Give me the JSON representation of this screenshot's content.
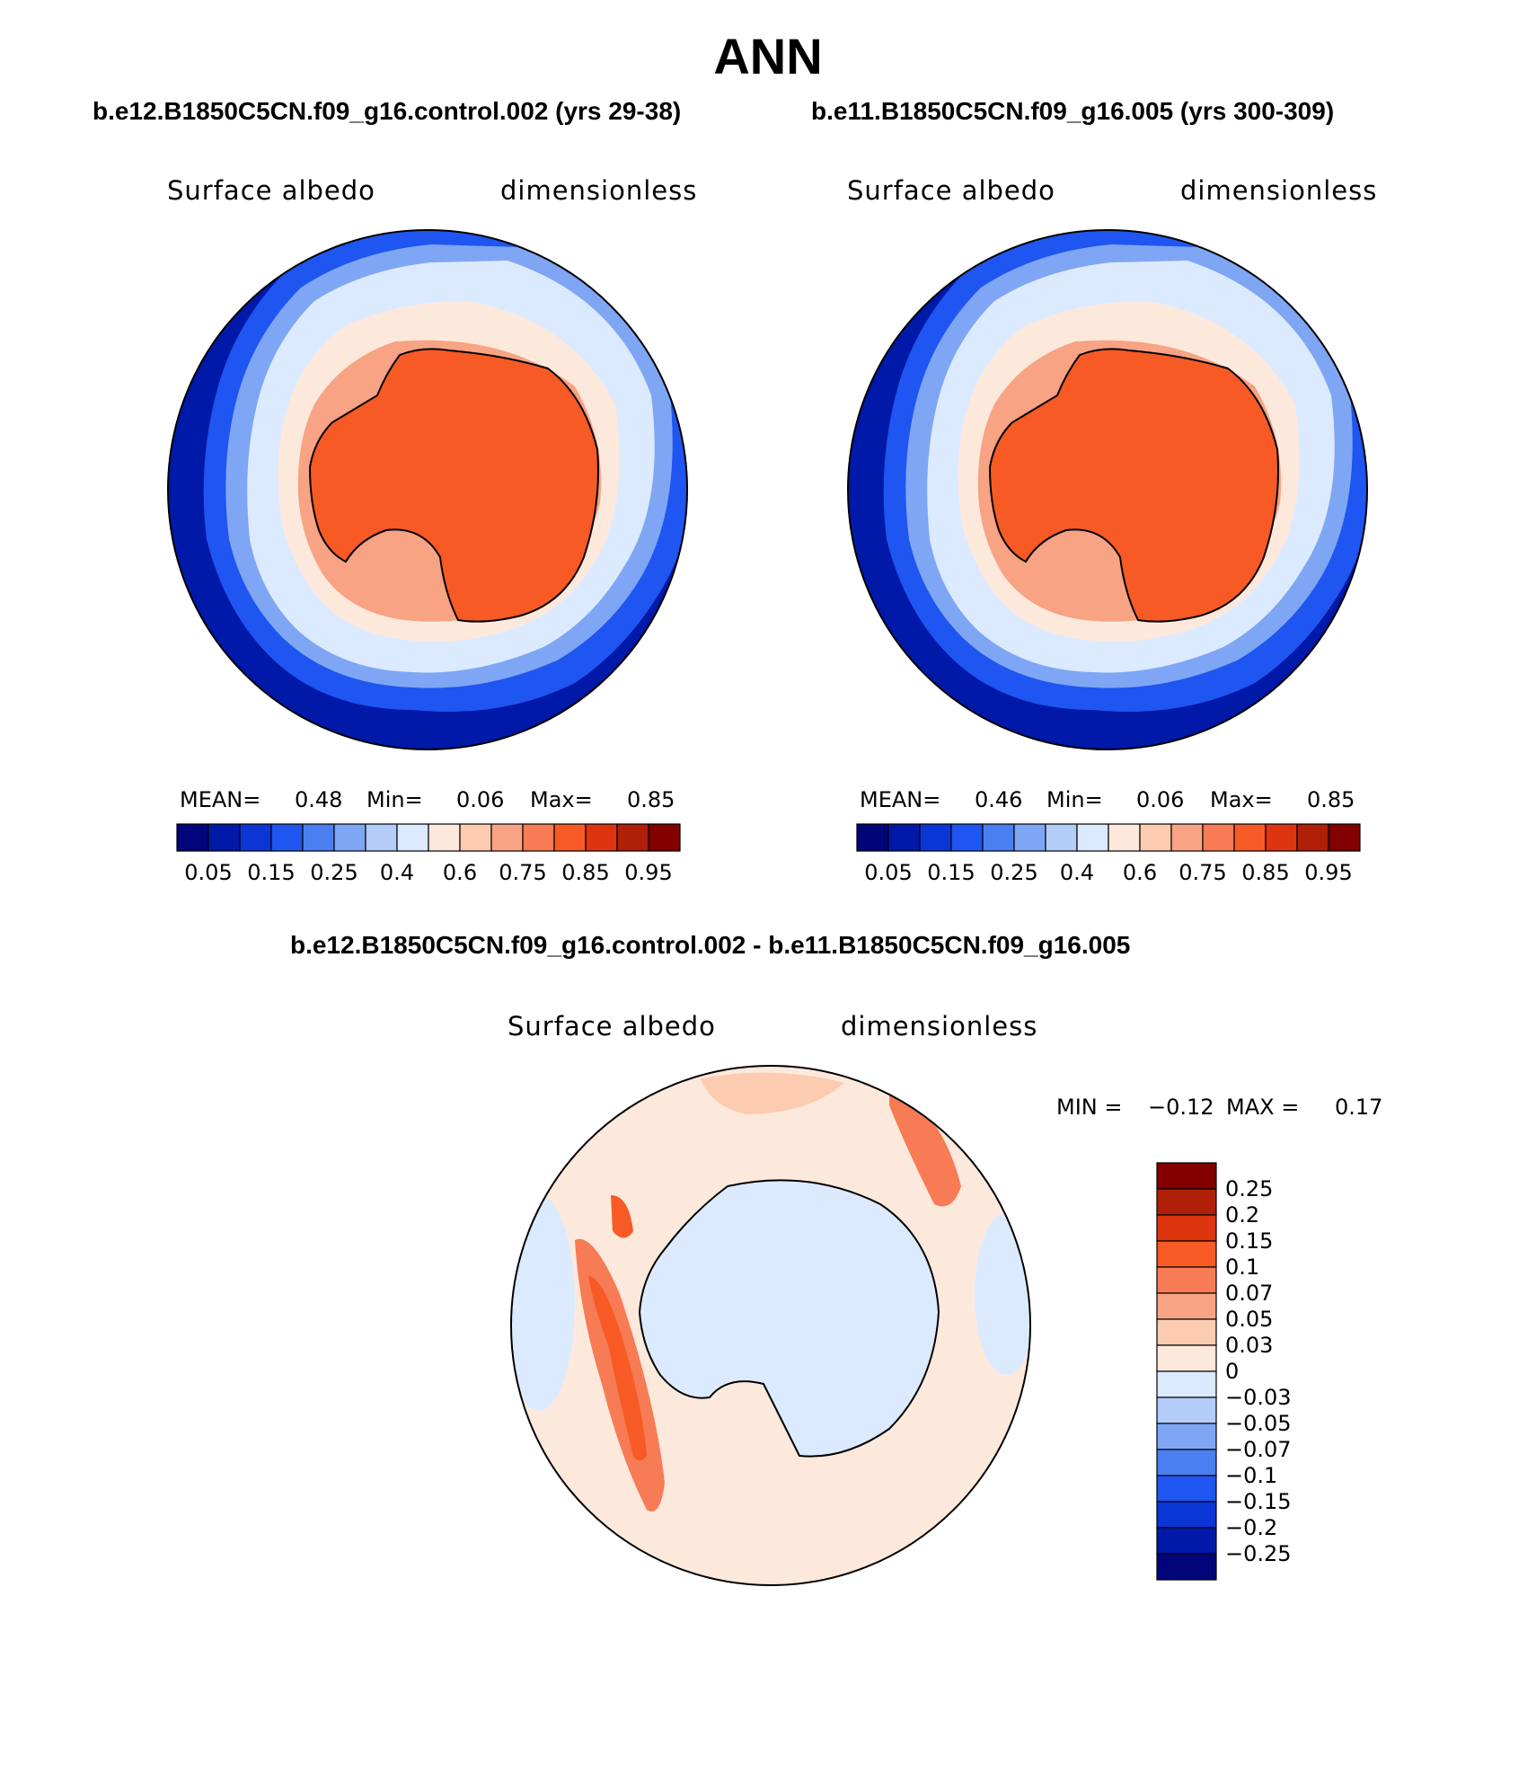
{
  "title": "ANN",
  "panels": [
    {
      "case": "b.e12.B1850C5CN.f09_g16.control.002 (yrs 29-38)",
      "variable": "Surface albedo",
      "units": "dimensionless",
      "mean_label": "MEAN=",
      "mean": "0.48",
      "min_label": "Min=",
      "min": "0.06",
      "max_label": "Max=",
      "max": "0.85"
    },
    {
      "case": "b.e11.B1850C5CN.f09_g16.005 (yrs 300-309)",
      "variable": "Surface albedo",
      "units": "dimensionless",
      "mean_label": "MEAN=",
      "mean": "0.46",
      "min_label": "Min=",
      "min": "0.06",
      "max_label": "Max=",
      "max": "0.85"
    }
  ],
  "difference": {
    "title": "b.e12.B1850C5CN.f09_g16.control.002 - b.e11.B1850C5CN.f09_g16.005",
    "variable": "Surface albedo",
    "units": "dimensionless",
    "min_label": "MIN =",
    "min": "−0.12",
    "max_label": "MAX =",
    "max": "0.17"
  },
  "colorbar_abs": {
    "colors": [
      "#00057a",
      "#0019a8",
      "#0a36d6",
      "#1f55f0",
      "#4a7ff2",
      "#7ea6f4",
      "#b3ccf8",
      "#dceaff",
      "#fde9dc",
      "#fccbb0",
      "#f7a384",
      "#f77b54",
      "#f75a25",
      "#dd3510",
      "#b01f07",
      "#820000"
    ],
    "labels": [
      "0.05",
      "0.15",
      "0.25",
      "0.4",
      "0.6",
      "0.75",
      "0.85",
      "0.95"
    ]
  },
  "colorbar_diff": {
    "colors": [
      "#820000",
      "#b01f07",
      "#dd3510",
      "#f75a25",
      "#f77b54",
      "#f7a384",
      "#fccbb0",
      "#fde9dc",
      "#dceaff",
      "#b3ccf8",
      "#7ea6f4",
      "#4a7ff2",
      "#1f55f0",
      "#0a36d6",
      "#0019a8",
      "#00057a"
    ],
    "labels": [
      "0.25",
      "0.2",
      "0.15",
      "0.1",
      "0.07",
      "0.05",
      "0.03",
      "0",
      "−0.03",
      "−0.05",
      "−0.07",
      "−0.1",
      "−0.15",
      "−0.2",
      "−0.25"
    ]
  }
}
